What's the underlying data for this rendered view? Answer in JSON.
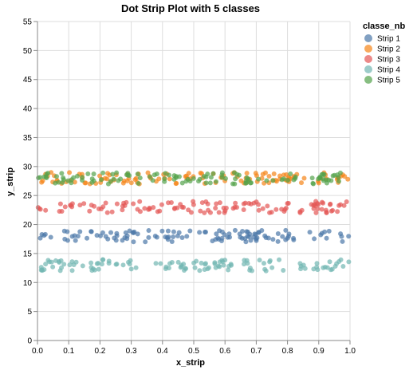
{
  "chart_data": {
    "type": "scatter",
    "title": "Dot Strip Plot with 5 classes",
    "xlabel": "x_strip",
    "ylabel": "y_strip",
    "xlim": [
      0,
      1
    ],
    "ylim": [
      0,
      55
    ],
    "x_ticks": [
      0,
      0.1,
      0.2,
      0.3,
      0.4,
      0.5,
      0.6,
      0.7,
      0.8,
      0.9,
      1
    ],
    "x_tick_labels": [
      "0.0",
      "0.1",
      "0.2",
      "0.3",
      "0.4",
      "0.5",
      "0.6",
      "0.7",
      "0.8",
      "0.9",
      "1.0"
    ],
    "y_ticks": [
      0,
      5,
      10,
      15,
      20,
      25,
      30,
      35,
      40,
      45,
      50,
      55
    ],
    "y_tick_labels": [
      "0",
      "5",
      "10",
      "15",
      "20",
      "25",
      "30",
      "35",
      "40",
      "45",
      "50",
      "55"
    ],
    "grid": true,
    "legend": {
      "title": "classe_nb",
      "placement": "top-right"
    },
    "series": [
      {
        "name": "Strip 1",
        "color": "#4c78a8",
        "y_range": [
          17,
          19
        ],
        "points": 120
      },
      {
        "name": "Strip 2",
        "color": "#f58518",
        "y_range": [
          27,
          29
        ],
        "points": 120
      },
      {
        "name": "Strip 3",
        "color": "#e45756",
        "y_range": [
          22,
          24
        ],
        "points": 120
      },
      {
        "name": "Strip 4",
        "color": "#72b7b2",
        "y_range": [
          12,
          14
        ],
        "points": 120
      },
      {
        "name": "Strip 5",
        "color": "#54a24b",
        "y_range": [
          27,
          29
        ],
        "points": 120
      }
    ]
  }
}
